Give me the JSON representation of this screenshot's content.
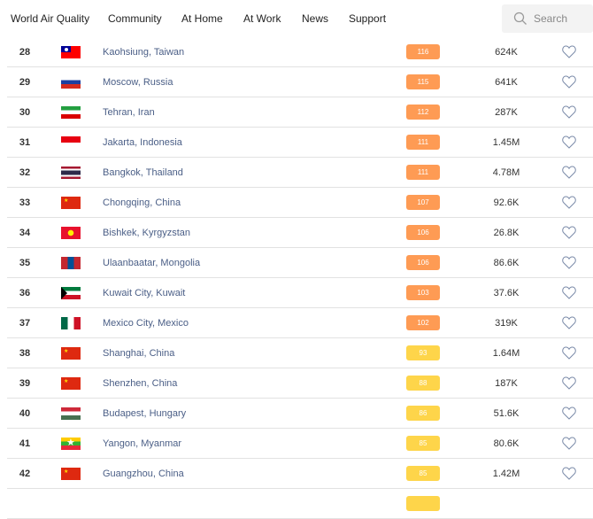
{
  "nav": {
    "items": [
      "World Air Quality",
      "Community",
      "At Home",
      "At Work",
      "News",
      "Support"
    ],
    "search_placeholder": "Search"
  },
  "colors": {
    "unhealthy_sensitive": "#fe9b54",
    "moderate": "#fed54a"
  },
  "rows": [
    {
      "rank": "28",
      "flag": "taiwan",
      "city": "Kaohsiung, Taiwan",
      "aqi": "116",
      "followers": "624K"
    },
    {
      "rank": "29",
      "flag": "russia",
      "city": "Moscow, Russia",
      "aqi": "115",
      "followers": "641K"
    },
    {
      "rank": "30",
      "flag": "iran",
      "city": "Tehran, Iran",
      "aqi": "112",
      "followers": "287K"
    },
    {
      "rank": "31",
      "flag": "indonesia",
      "city": "Jakarta, Indonesia",
      "aqi": "111",
      "followers": "1.45M"
    },
    {
      "rank": "32",
      "flag": "thailand",
      "city": "Bangkok, Thailand",
      "aqi": "111",
      "followers": "4.78M"
    },
    {
      "rank": "33",
      "flag": "china",
      "city": "Chongqing, China",
      "aqi": "107",
      "followers": "92.6K"
    },
    {
      "rank": "34",
      "flag": "kyrgyzstan",
      "city": "Bishkek, Kyrgyzstan",
      "aqi": "106",
      "followers": "26.8K"
    },
    {
      "rank": "35",
      "flag": "mongolia",
      "city": "Ulaanbaatar, Mongolia",
      "aqi": "106",
      "followers": "86.6K"
    },
    {
      "rank": "36",
      "flag": "kuwait",
      "city": "Kuwait City, Kuwait",
      "aqi": "103",
      "followers": "37.6K"
    },
    {
      "rank": "37",
      "flag": "mexico",
      "city": "Mexico City, Mexico",
      "aqi": "102",
      "followers": "319K"
    },
    {
      "rank": "38",
      "flag": "china",
      "city": "Shanghai, China",
      "aqi": "93",
      "followers": "1.64M"
    },
    {
      "rank": "39",
      "flag": "china",
      "city": "Shenzhen, China",
      "aqi": "88",
      "followers": "187K"
    },
    {
      "rank": "40",
      "flag": "hungary",
      "city": "Budapest, Hungary",
      "aqi": "86",
      "followers": "51.6K"
    },
    {
      "rank": "41",
      "flag": "myanmar",
      "city": "Yangon, Myanmar",
      "aqi": "85",
      "followers": "80.6K"
    },
    {
      "rank": "42",
      "flag": "china",
      "city": "Guangzhou, China",
      "aqi": "85",
      "followers": "1.42M"
    }
  ]
}
